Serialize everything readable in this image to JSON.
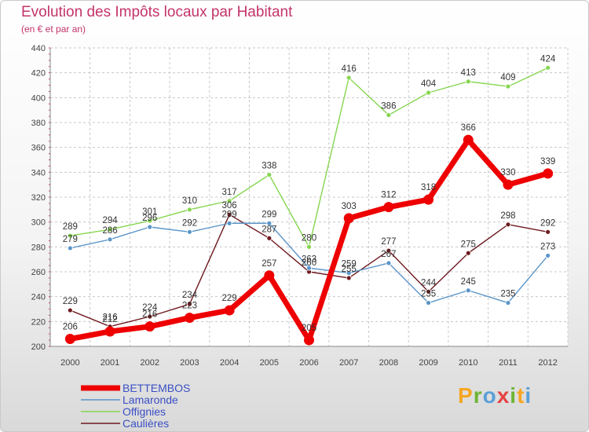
{
  "title": "Evolution des Impôts locaux par Habitant",
  "subtitle": "(en € et par an)",
  "logo": {
    "text": "Proxiti",
    "colors": [
      "#f6a623",
      "#6cb533",
      "#5aa0d8",
      "#e64242",
      "#6cb533",
      "#f6a623",
      "#5aa0d8"
    ]
  },
  "chart_data": {
    "type": "line",
    "title": "Evolution des Impôts locaux par Habitant",
    "subtitle": "(en € et par an)",
    "xlabel": "",
    "ylabel": "",
    "ylim": [
      200,
      440
    ],
    "yticks": [
      200,
      220,
      240,
      260,
      280,
      300,
      320,
      340,
      360,
      380,
      400,
      420,
      440
    ],
    "x": [
      "2000",
      "2001",
      "2002",
      "2003",
      "2004",
      "2005",
      "2006",
      "2007",
      "2008",
      "2009",
      "2010",
      "2011",
      "2012"
    ],
    "grid": true,
    "legend_position": "bottom-left",
    "series": [
      {
        "name": "Caulières",
        "color": "#6e1a1f",
        "values": [
          229,
          216,
          224,
          234,
          306,
          287,
          260,
          255,
          277,
          244,
          275,
          298,
          292
        ]
      },
      {
        "name": "Lamaronde",
        "color": "#5a95c9",
        "values": [
          279,
          286,
          296,
          292,
          299,
          299,
          263,
          259,
          267,
          235,
          245,
          235,
          273
        ]
      },
      {
        "name": "Offignies",
        "color": "#86d650",
        "values": [
          289,
          294,
          301,
          310,
          317,
          338,
          280,
          416,
          386,
          404,
          413,
          409,
          424
        ]
      },
      {
        "name": "BETTEMBOS",
        "color": "#ee0000",
        "values": [
          206,
          212,
          216,
          223,
          229,
          257,
          205,
          303,
          312,
          318,
          366,
          330,
          339
        ]
      }
    ],
    "legend": [
      "BETTEMBOS",
      "Lamaronde",
      "Offignies",
      "Caulières"
    ]
  }
}
